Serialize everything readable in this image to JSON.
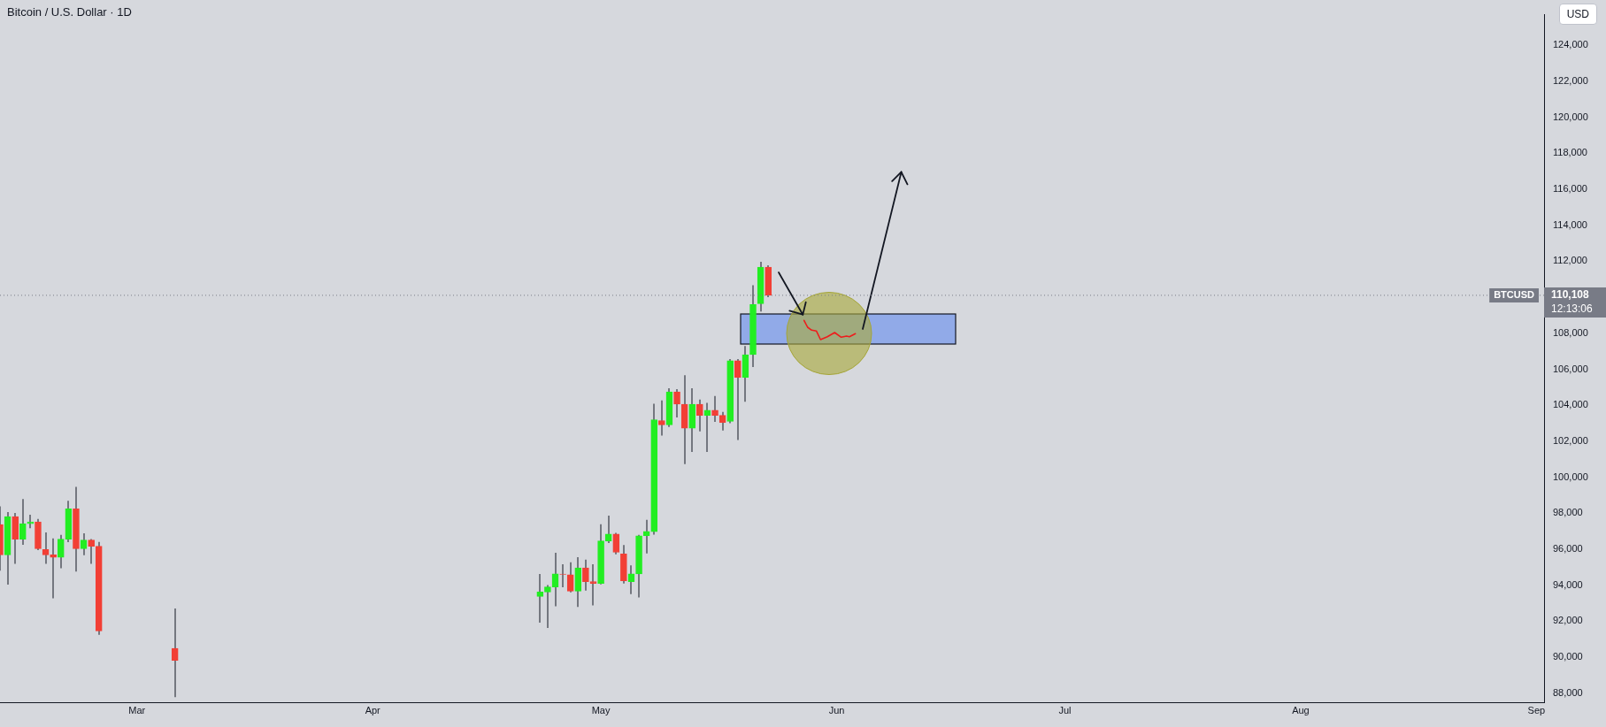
{
  "chart_data": {
    "type": "candlestick",
    "title": "Bitcoin / U.S. Dollar · 1D",
    "x": [
      "--02-11",
      "--02-12",
      "--02-13",
      "--02-14",
      "--02-15",
      "--02-16",
      "--02-17",
      "--02-18",
      "--02-19",
      "--02-20",
      "--02-21",
      "--02-22",
      "--02-23",
      "--02-24",
      "--03-06",
      "--04-23",
      "--04-24",
      "--04-25",
      "--04-26",
      "--04-27",
      "--04-28",
      "--04-29",
      "--04-30",
      "--05-01",
      "--05-02",
      "--05-03",
      "--05-04",
      "--05-05",
      "--05-06",
      "--05-07",
      "--05-08",
      "--05-09",
      "--05-10",
      "--05-11",
      "--05-12",
      "--05-13",
      "--05-14",
      "--05-15",
      "--05-16",
      "--05-17",
      "--05-18",
      "--05-19",
      "--05-20",
      "--05-21",
      "--05-22",
      "--05-23"
    ],
    "ohlc": [
      [
        97370,
        98390,
        94810,
        95690
      ],
      [
        95690,
        98060,
        94040,
        97810
      ],
      [
        97810,
        98020,
        95190,
        96560
      ],
      [
        96560,
        98790,
        96250,
        97420
      ],
      [
        97420,
        97920,
        97170,
        97520
      ],
      [
        97520,
        97680,
        95950,
        96030
      ],
      [
        95980,
        96940,
        95190,
        95690
      ],
      [
        95690,
        96600,
        93270,
        95550
      ],
      [
        95550,
        96800,
        94950,
        96560
      ],
      [
        96560,
        98690,
        96400,
        98240
      ],
      [
        98240,
        99460,
        94760,
        96030
      ],
      [
        96030,
        96890,
        95670,
        96510
      ],
      [
        96510,
        96560,
        95190,
        96170
      ],
      [
        96170,
        96410,
        91250,
        91460
      ],
      [
        90490,
        92710,
        87780,
        89820
      ],
      [
        93380,
        94630,
        91920,
        93620
      ],
      [
        93620,
        94010,
        91630,
        93910
      ],
      [
        93910,
        95800,
        92830,
        94630
      ],
      [
        94620,
        95160,
        93890,
        94600
      ],
      [
        94580,
        95270,
        93600,
        93670
      ],
      [
        93670,
        95560,
        92790,
        94970
      ],
      [
        94970,
        95420,
        93700,
        94200
      ],
      [
        94200,
        95160,
        92880,
        94100
      ],
      [
        94100,
        97390,
        94050,
        96460
      ],
      [
        96460,
        97870,
        96350,
        96840
      ],
      [
        96840,
        96910,
        95720,
        95830
      ],
      [
        95740,
        96240,
        94100,
        94250
      ],
      [
        94200,
        95110,
        93510,
        94630
      ],
      [
        94630,
        96800,
        93320,
        96750
      ],
      [
        96750,
        97630,
        95770,
        96990
      ],
      [
        96970,
        104080,
        96810,
        103200
      ],
      [
        103150,
        104270,
        102310,
        102910
      ],
      [
        102910,
        104940,
        102800,
        104740
      ],
      [
        104740,
        104900,
        103320,
        104060
      ],
      [
        104060,
        105670,
        100730,
        102720
      ],
      [
        102720,
        104940,
        101400,
        104060
      ],
      [
        104060,
        104320,
        102550,
        103440
      ],
      [
        103440,
        104130,
        101400,
        103730
      ],
      [
        103730,
        104510,
        103080,
        103440
      ],
      [
        103440,
        103630,
        102600,
        103050
      ],
      [
        103100,
        106570,
        103000,
        106470
      ],
      [
        106470,
        106570,
        102070,
        105550
      ],
      [
        105550,
        107290,
        104190,
        106810
      ],
      [
        106810,
        110670,
        106120,
        109600
      ],
      [
        109640,
        111970,
        109210,
        111670
      ],
      [
        111670,
        111780,
        110000,
        110108
      ]
    ],
    "colors": [
      "#f23f35",
      "#22ee22",
      "#f23f35",
      "#22ee22",
      "#22ee22",
      "#f23f35",
      "#f23f35",
      "#f23f35",
      "#22ee22",
      "#22ee22",
      "#f23f35",
      "#22ee22",
      "#f23f35",
      "#f23f35",
      "#f23f35",
      "#22ee22",
      "#22ee22",
      "#22ee22",
      "#f23f35",
      "#f23f35",
      "#22ee22",
      "#f23f35",
      "#f23f35",
      "#22ee22",
      "#22ee22",
      "#f23f35",
      "#f23f35",
      "#22ee22",
      "#22ee22",
      "#22ee22",
      "#22ee22",
      "#f23f35",
      "#22ee22",
      "#f23f35",
      "#f23f35",
      "#22ee22",
      "#f23f35",
      "#22ee22",
      "#f23f35",
      "#f23f35",
      "#22ee22",
      "#f23f35",
      "#22ee22",
      "#22ee22",
      "#22ee22",
      "#f23f35"
    ],
    "xlim": [
      "--02-11",
      "--09-02"
    ],
    "xticks": [
      {
        "value": "--03-01",
        "label": "Mar"
      },
      {
        "value": "--04-01",
        "label": "Apr"
      },
      {
        "value": "--05-01",
        "label": "May"
      },
      {
        "value": "--06-01",
        "label": "Jun"
      },
      {
        "value": "--07-01",
        "label": "Jul"
      },
      {
        "value": "--08-01",
        "label": "Aug"
      },
      {
        "value": "--09-01",
        "label": "Sep"
      }
    ],
    "ylim": [
      87500,
      125700
    ],
    "yticks": [
      {
        "value": 88000,
        "label": "88,000"
      },
      {
        "value": 90000,
        "label": "90,000"
      },
      {
        "value": 92000,
        "label": "92,000"
      },
      {
        "value": 94000,
        "label": "94,000"
      },
      {
        "value": 96000,
        "label": "96,000"
      },
      {
        "value": 98000,
        "label": "98,000"
      },
      {
        "value": 100000,
        "label": "100,000"
      },
      {
        "value": 102000,
        "label": "102,000"
      },
      {
        "value": 104000,
        "label": "104,000"
      },
      {
        "value": 106000,
        "label": "106,000"
      },
      {
        "value": 108000,
        "label": "108,000"
      },
      {
        "value": 112000,
        "label": "112,000"
      },
      {
        "value": 114000,
        "label": "114,000"
      },
      {
        "value": 116000,
        "label": "116,000"
      },
      {
        "value": 118000,
        "label": "118,000"
      },
      {
        "value": 120000,
        "label": "120,000"
      },
      {
        "value": 122000,
        "label": "122,000"
      },
      {
        "value": 124000,
        "label": "124,000"
      }
    ],
    "ref_lines": [
      {
        "axis": "y",
        "value": 110108,
        "label": "110,108",
        "color": "#787b86",
        "line_style": "dotted"
      }
    ],
    "annotations": [
      "BTCUSD",
      "12:13:06",
      "USD"
    ],
    "grid": false,
    "legend": false
  }
}
